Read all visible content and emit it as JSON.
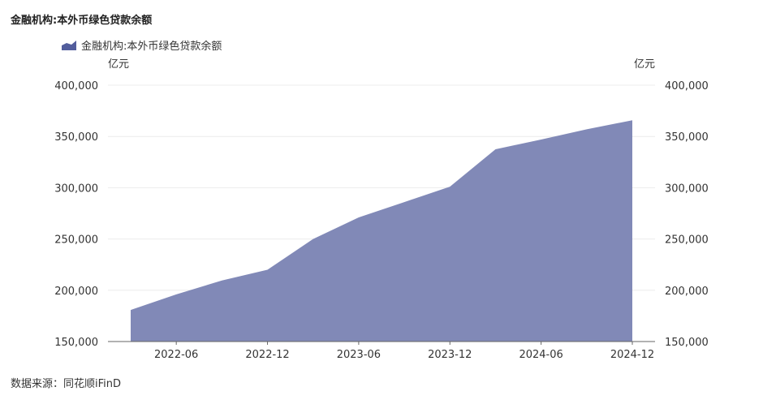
{
  "title": "金融机构:本外币绿色贷款余额",
  "source": "数据来源：同花顺iFinD",
  "colors": {
    "area": "#8189b7",
    "legend": "#525d9c",
    "grid": "#ececec",
    "axis": "#666666"
  },
  "chart_data": {
    "type": "area",
    "title": "金融机构:本外币绿色贷款余额",
    "series": [
      {
        "name": "金融机构:本外币绿色贷款余额",
        "x": [
          "2022-03",
          "2022-06",
          "2022-09",
          "2022-12",
          "2023-03",
          "2023-06",
          "2023-09",
          "2023-12",
          "2024-03",
          "2024-06",
          "2024-09",
          "2024-12"
        ],
        "values": [
          180800,
          196000,
          209500,
          220000,
          250000,
          271000,
          286000,
          301000,
          337500,
          347000,
          357000,
          365800
        ]
      }
    ],
    "y_unit_left": "亿元",
    "y_unit_right": "亿元",
    "ylim": [
      150000,
      400000
    ],
    "y_ticks": [
      150000,
      200000,
      250000,
      300000,
      350000,
      400000
    ],
    "y_tick_labels": [
      "150,000",
      "200,000",
      "250,000",
      "300,000",
      "350,000",
      "400,000"
    ],
    "x_tick_labels": [
      "2022-06",
      "2022-12",
      "2023-06",
      "2023-12",
      "2024-06",
      "2024-12"
    ],
    "grid": true,
    "legend_position": "top-left"
  }
}
